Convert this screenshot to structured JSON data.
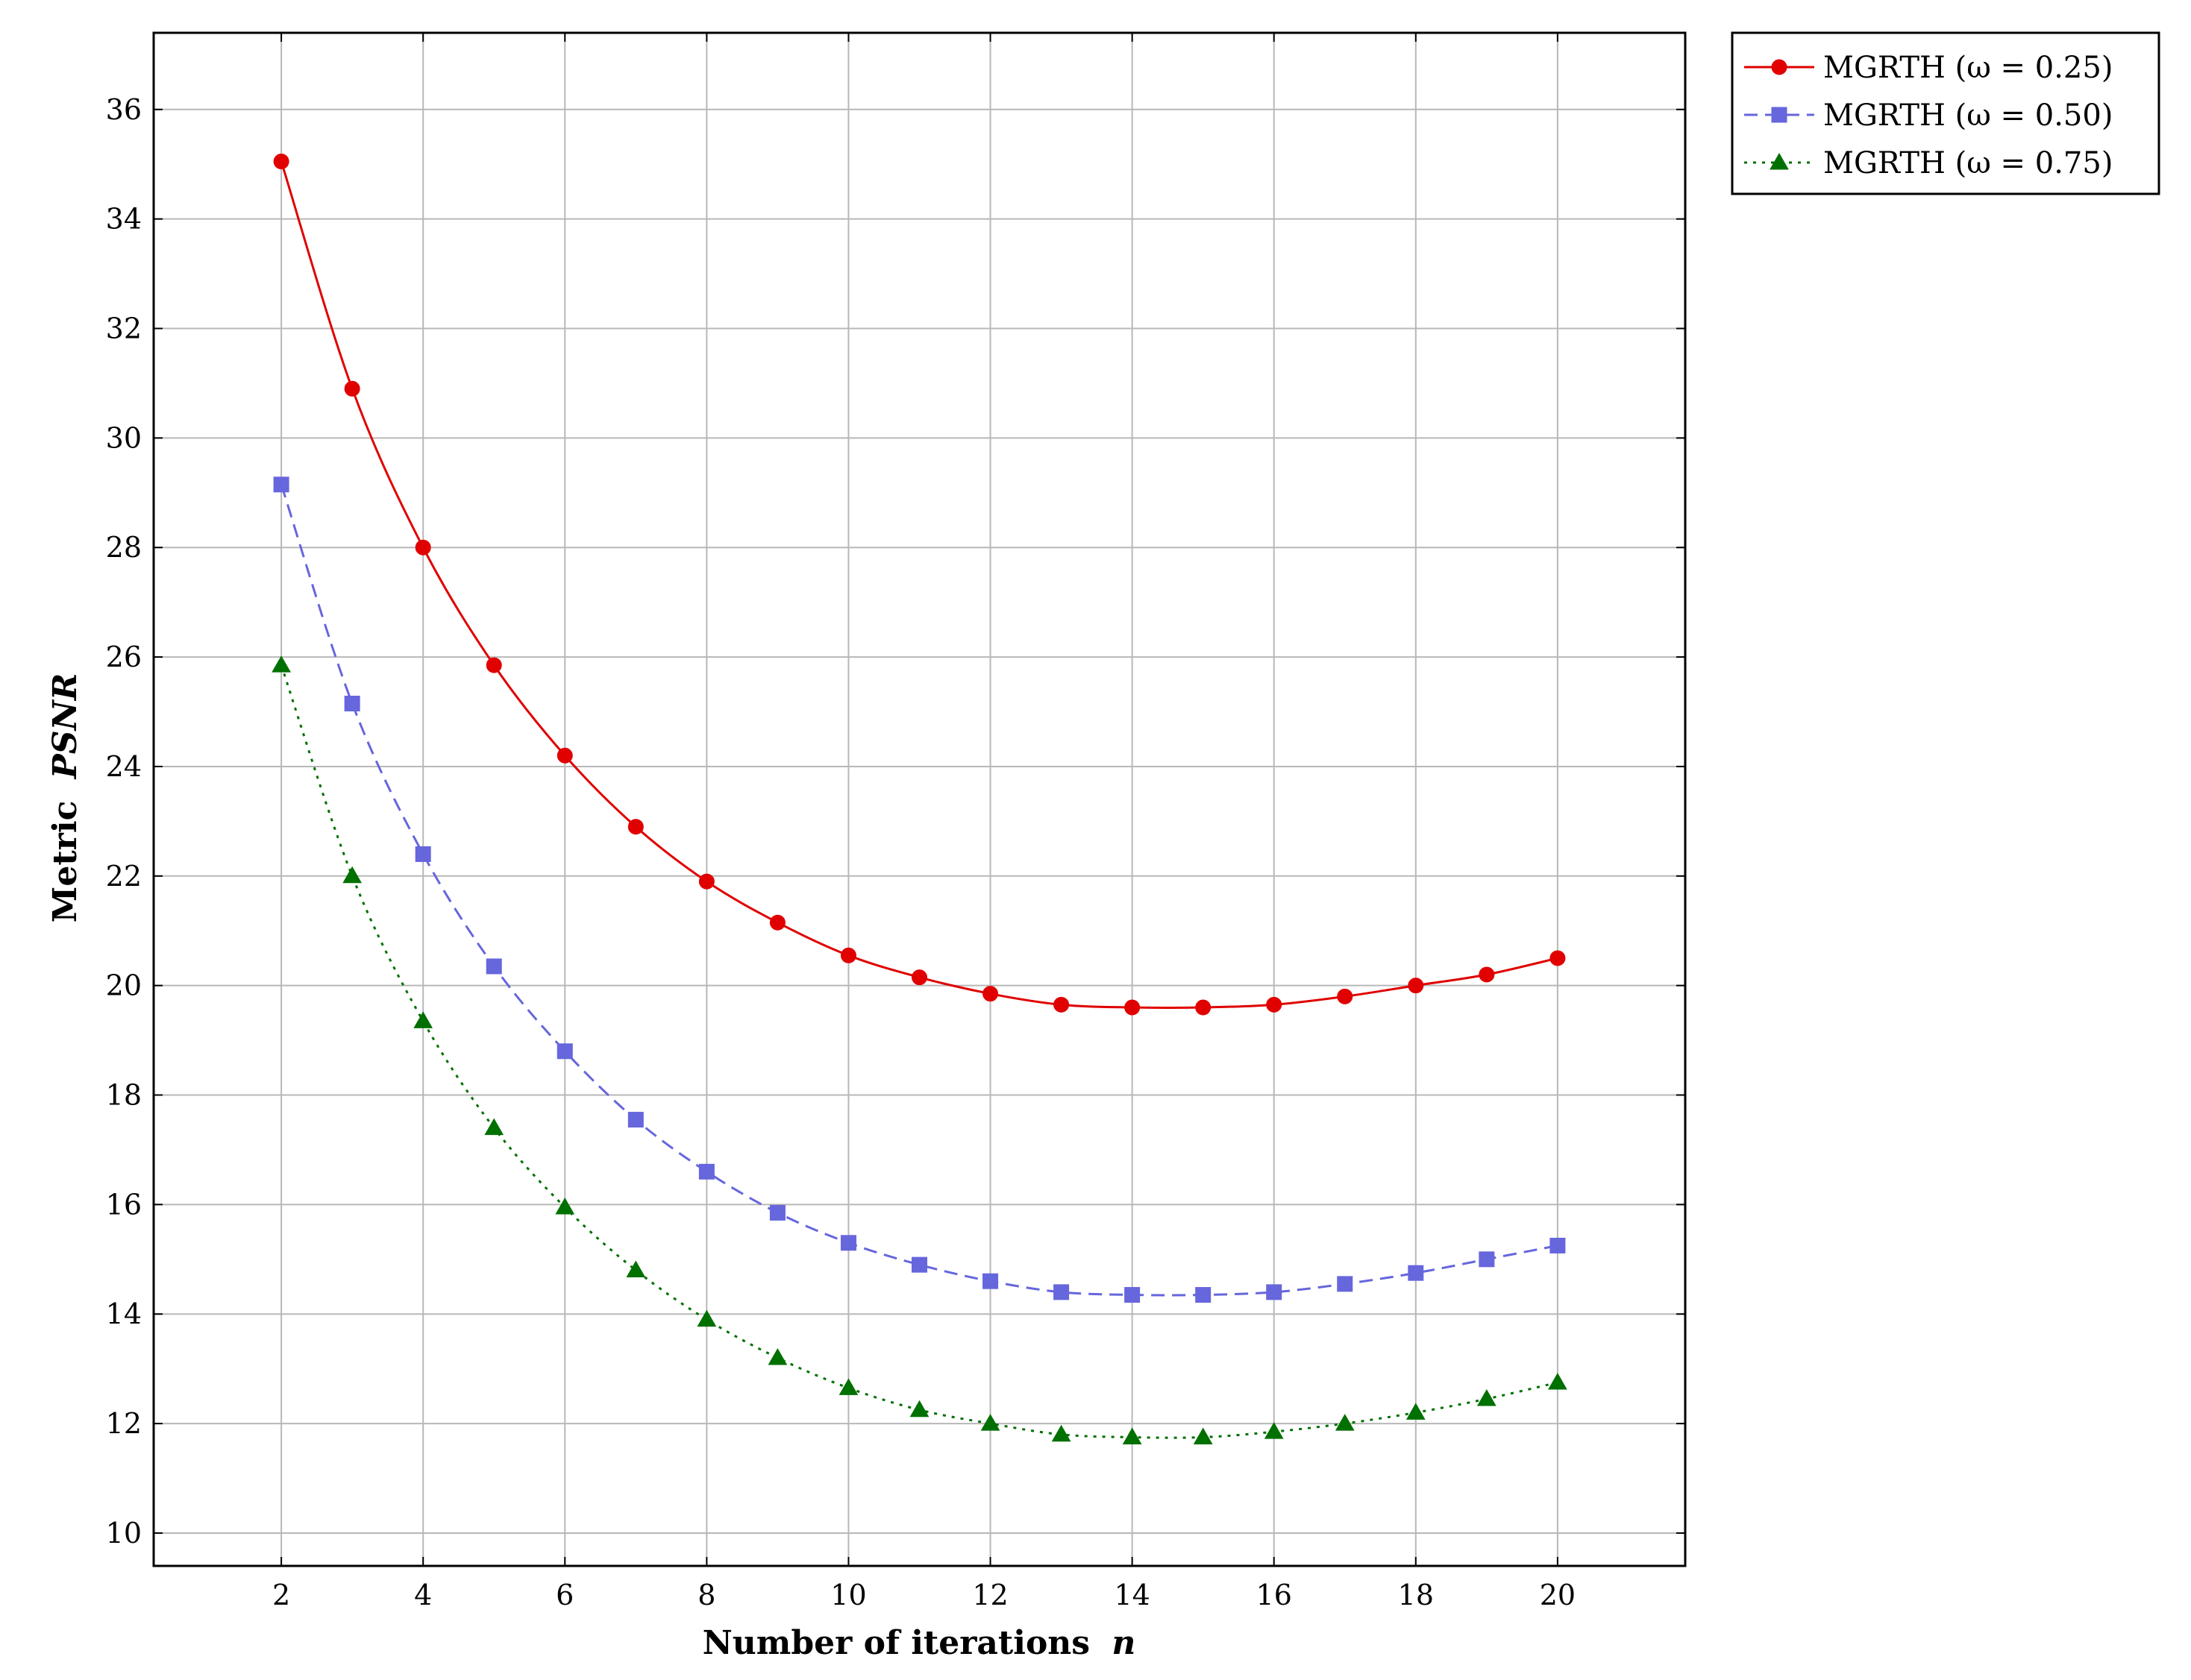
{
  "chart_data": {
    "type": "line",
    "title": "",
    "xlabel": "Number of iterations",
    "xlabel_var": "n",
    "ylabel": "Metric",
    "ylabel_var": "PSNR",
    "xlim": [
      0.2,
      21.8
    ],
    "ylim": [
      9.4,
      37.4
    ],
    "xticks": [
      "2",
      "4",
      "6",
      "8",
      "10",
      "12",
      "14",
      "16",
      "18",
      "20"
    ],
    "yticks": [
      "10",
      "12",
      "14",
      "16",
      "18",
      "20",
      "22",
      "24",
      "26",
      "28",
      "30",
      "32",
      "34",
      "36"
    ],
    "grid": true,
    "legend_position": "outside-top-right",
    "x": [
      2,
      3,
      4,
      5,
      6,
      7,
      8,
      9,
      10,
      11,
      12,
      13,
      14,
      15,
      16,
      17,
      18,
      19,
      20
    ],
    "series": [
      {
        "name": "MGRTH (ω = 0.25)",
        "color": "#e00000",
        "line": "solid",
        "marker": "circle",
        "values": [
          35.05,
          30.9,
          28.0,
          25.85,
          24.2,
          22.9,
          21.9,
          21.15,
          20.55,
          20.15,
          19.85,
          19.65,
          19.6,
          19.6,
          19.65,
          19.8,
          20.0,
          20.2,
          20.5
        ]
      },
      {
        "name": "MGRTH (ω = 0.50)",
        "color": "#6666dd",
        "line": "dashed",
        "marker": "square",
        "values": [
          29.15,
          25.15,
          22.4,
          20.35,
          18.8,
          17.55,
          16.6,
          15.85,
          15.3,
          14.9,
          14.6,
          14.4,
          14.35,
          14.35,
          14.4,
          14.55,
          14.75,
          15.0,
          15.25
        ]
      },
      {
        "name": "MGRTH (ω = 0.75)",
        "color": "#007000",
        "line": "dotted",
        "marker": "triangle",
        "values": [
          25.85,
          22.0,
          19.35,
          17.4,
          15.95,
          14.8,
          13.9,
          13.2,
          12.65,
          12.25,
          12.0,
          11.8,
          11.75,
          11.75,
          11.85,
          12.0,
          12.2,
          12.45,
          12.75
        ]
      }
    ]
  }
}
